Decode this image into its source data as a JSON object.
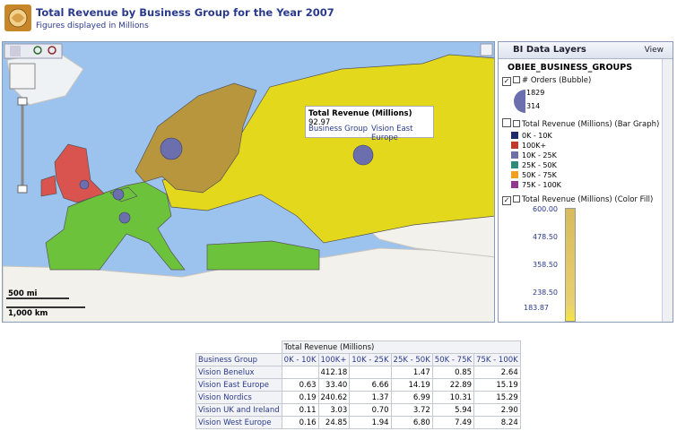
{
  "header": {
    "title": "Total Revenue by Business Group for the Year 2007",
    "subtitle": "Figures displayed in Millions"
  },
  "map": {
    "tooltip": {
      "measure": "Total Revenue (Millions)",
      "value": "92.97",
      "label": "Business Group",
      "member": "Vision East Europe"
    },
    "scale": {
      "miles": "500 mi",
      "km": "1,000 km"
    }
  },
  "layers_panel": {
    "title": "BI Data Layers",
    "view_menu": "View",
    "group": "OBIEE_BUSINESS_GROUPS",
    "layers": [
      {
        "name": "# Orders (Bubble)",
        "checked": true,
        "bubble_max": "1829",
        "bubble_min": "314"
      },
      {
        "name": "Total Revenue (Millions) (Bar Graph)",
        "checked": false,
        "items": [
          "0K - 10K",
          "100K+",
          "10K - 25K",
          "25K - 50K",
          "50K - 75K",
          "75K - 100K"
        ]
      },
      {
        "name": "Total Revenue (Millions) (Color Fill)",
        "checked": true,
        "scale_labels": [
          "600.00",
          "478.50",
          "358.50",
          "238.50",
          "183.87"
        ]
      }
    ]
  },
  "table": {
    "measure_header": "Total Revenue (Millions)",
    "columns": [
      "Business Group",
      "0K - 10K",
      "100K+",
      "10K - 25K",
      "25K - 50K",
      "50K - 75K",
      "75K - 100K"
    ],
    "rows": [
      [
        "Vision Benelux",
        null,
        "412.18",
        null,
        "1.47",
        "0.85",
        "2.64"
      ],
      [
        "Vision East Europe",
        "0.63",
        "33.40",
        "6.66",
        "14.19",
        "22.89",
        "15.19"
      ],
      [
        "Vision Nordics",
        "0.19",
        "240.62",
        "1.37",
        "6.99",
        "10.31",
        "15.29"
      ],
      [
        "Vision UK and Ireland",
        "0.11",
        "3.03",
        "0.70",
        "3.72",
        "5.94",
        "2.90"
      ],
      [
        "Vision West Europe",
        "0.16",
        "24.85",
        "1.94",
        "6.80",
        "7.49",
        "8.24"
      ]
    ]
  }
}
